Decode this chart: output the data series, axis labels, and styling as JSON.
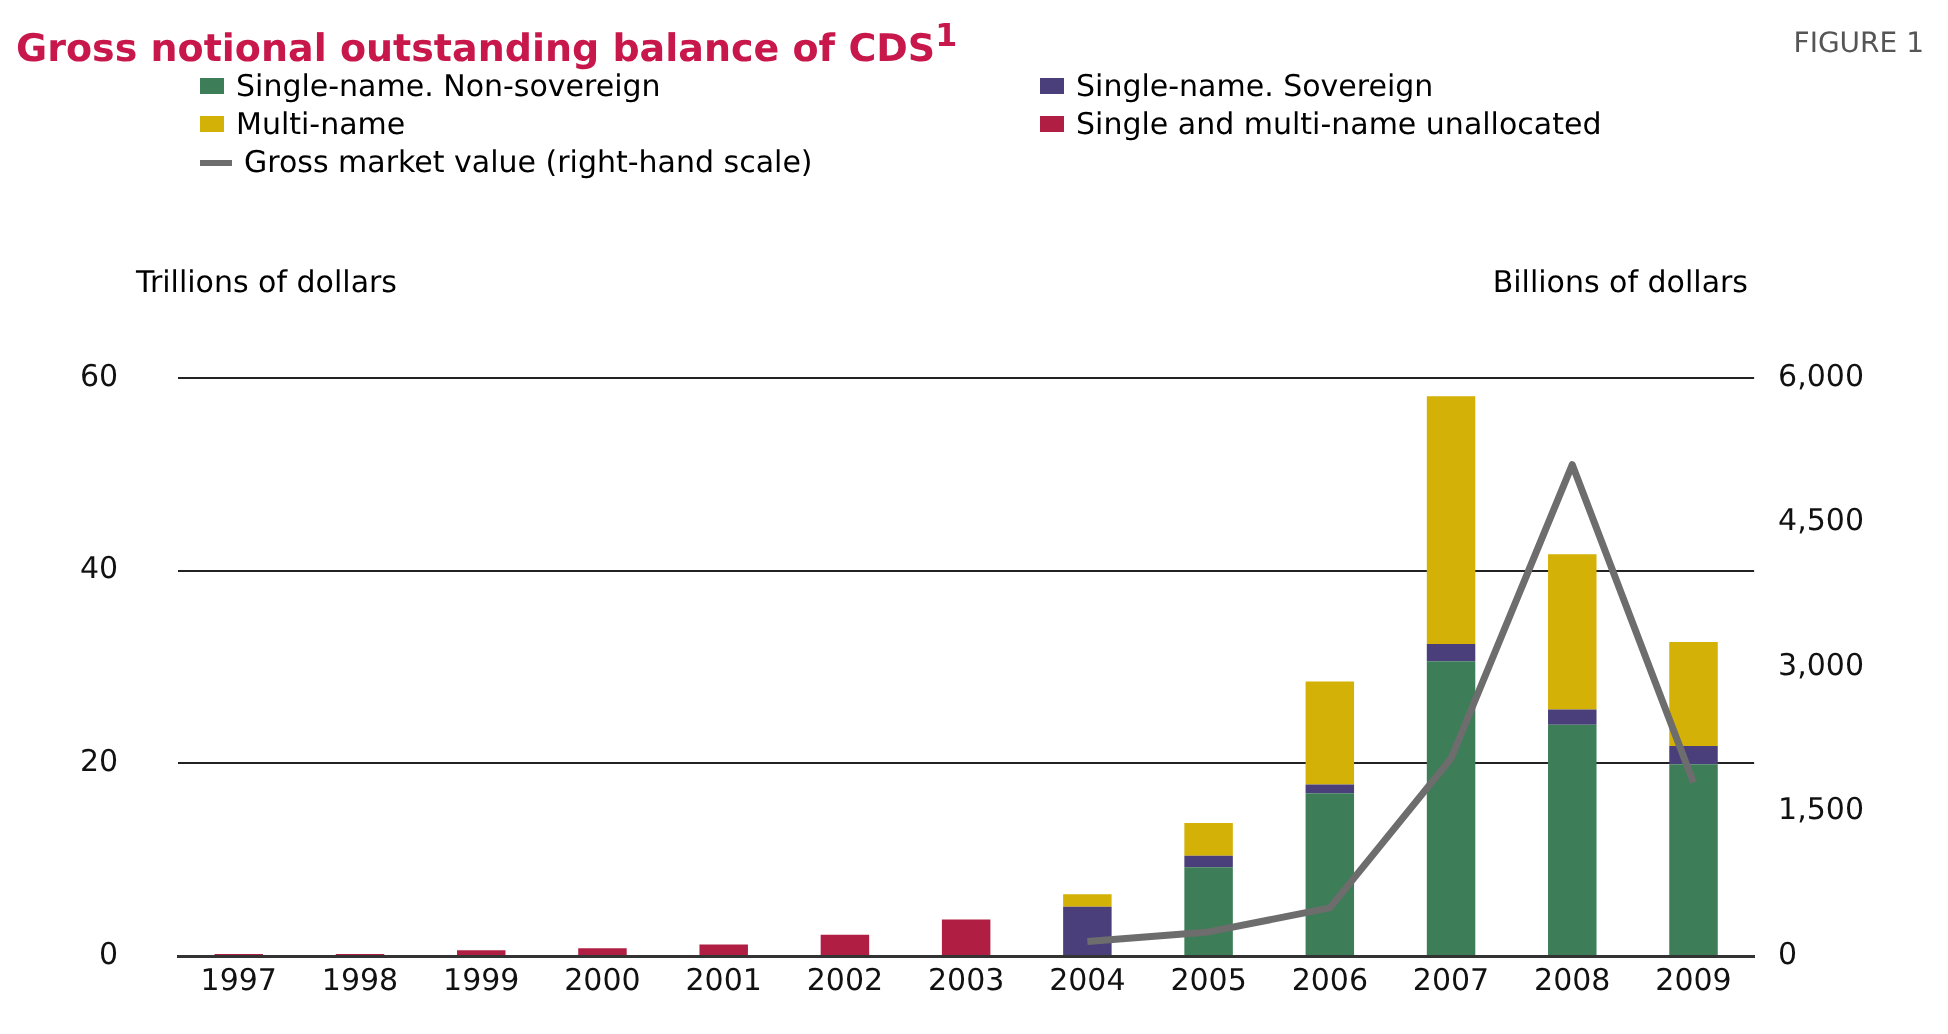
{
  "chart_data": {
    "type": "bar",
    "stacked": true,
    "title": "Gross notional outstanding balance of CDS$^{1}$",
    "annotations": [
      "FIGURE 1"
    ],
    "ylabel": "Trillions of dollars",
    "y2label": "Billions of dollars",
    "categories": [
      "1997",
      "1998",
      "1999",
      "2000",
      "2001",
      "2002",
      "2003",
      "2004",
      "2005",
      "2006",
      "2007",
      "2008",
      "2009"
    ],
    "series": [
      {
        "name": "Single-name. Non-sovereign",
        "color": "#3d7d58",
        "values": [
          null,
          null,
          null,
          null,
          null,
          null,
          null,
          null,
          9.2,
          16.9,
          30.6,
          24.0,
          19.9
        ]
      },
      {
        "name": "Single-name. Sovereign",
        "color": "#4a3f7a",
        "values": [
          null,
          null,
          null,
          null,
          null,
          null,
          null,
          5.1,
          1.2,
          0.9,
          1.8,
          1.6,
          1.9
        ]
      },
      {
        "name": "Multi-name",
        "color": "#d4b106",
        "values": [
          null,
          null,
          null,
          null,
          null,
          null,
          null,
          1.3,
          3.4,
          10.7,
          25.7,
          16.1,
          10.8
        ]
      },
      {
        "name": "Single and multi-name unallocated",
        "color": "#b01f43",
        "values": [
          0.2,
          0.2,
          0.6,
          0.8,
          1.2,
          2.2,
          3.8,
          null,
          null,
          null,
          null,
          null,
          null
        ]
      },
      {
        "name": "Gross market value (right-hand scale)",
        "type": "line",
        "axis": "y2",
        "color": "#6d6d6d",
        "values": [
          null,
          null,
          null,
          null,
          null,
          null,
          null,
          150,
          250,
          500,
          2050,
          5100,
          1800
        ]
      }
    ],
    "ylim": [
      0,
      60
    ],
    "yticks": [
      0,
      20,
      40,
      60
    ],
    "y2lim": [
      0,
      6000
    ],
    "y2ticks": [
      0,
      {
        "value": 1500,
        "label": "1,500"
      },
      {
        "value": 3000,
        "label": "3,000"
      },
      {
        "value": 4500,
        "label": "4,500"
      },
      {
        "value": 6000,
        "label": "6,000"
      }
    ],
    "grid": "y",
    "legend": "top left",
    "marker": "none"
  }
}
